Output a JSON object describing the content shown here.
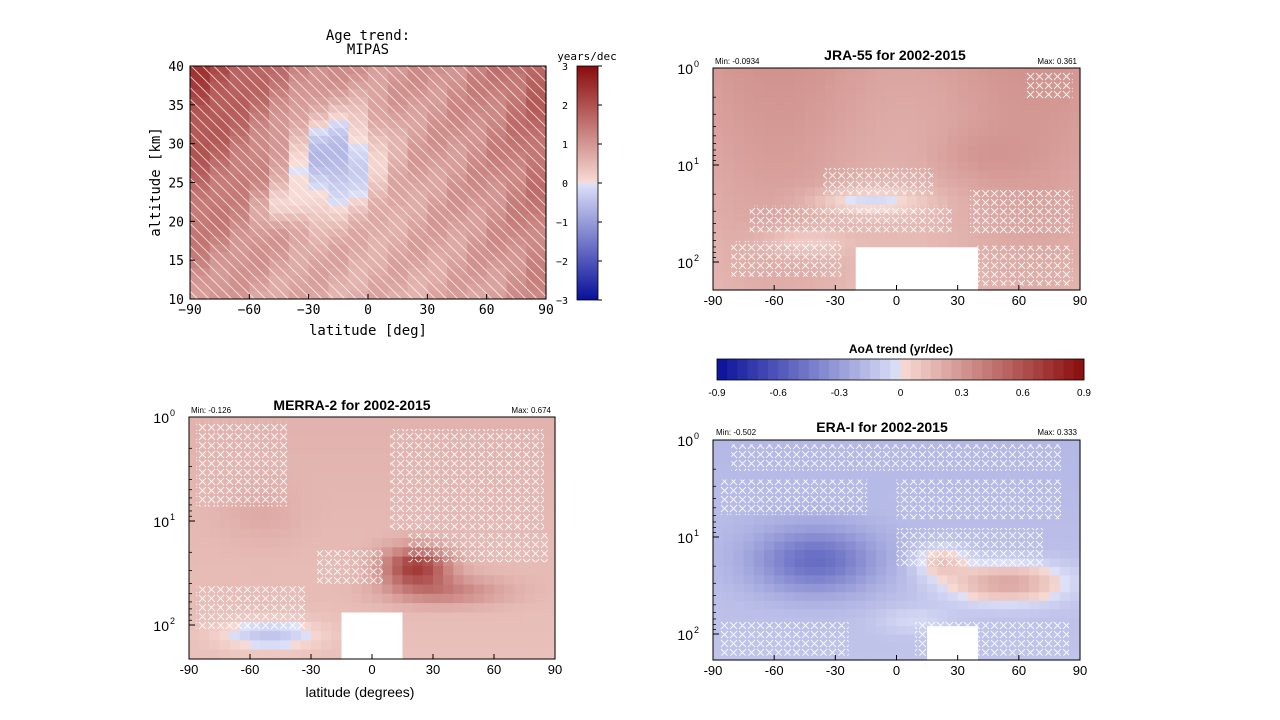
{
  "colors": {
    "neg_dark": "#08109a",
    "neg_light": "#dfe2f8",
    "pos_light": "#f8dcd6",
    "pos_dark": "#8a0c0c",
    "missing": "#ffffff",
    "hatch": "#ffffff"
  },
  "chart_data": [
    {
      "id": "mipas",
      "type": "heatmap",
      "title_line1": "Age trend:",
      "title_line2": "MIPAS",
      "xlabel": "latitude [deg]",
      "ylabel": "altitude [km]",
      "xlim": [
        -90,
        90
      ],
      "ylim": [
        10,
        40
      ],
      "y_scale": "linear",
      "x_ticks": [
        "−90",
        "−60",
        "−30",
        "0",
        "30",
        "60",
        "90"
      ],
      "y_ticks": [
        "10",
        "15",
        "20",
        "25",
        "30",
        "35",
        "40"
      ],
      "colorbar": {
        "label": "years/dec",
        "range": [
          -3,
          3
        ],
        "ticks": [
          "3",
          "2",
          "1",
          "0",
          "−1",
          "−2",
          "−3"
        ]
      },
      "cell_grid": {
        "nx": 18,
        "ny": 30
      },
      "hatching": "diagonal lines mark non-significant trends",
      "value_range": [
        -1.2,
        3.0
      ]
    },
    {
      "id": "jra55",
      "type": "heatmap",
      "title": "JRA-55 for 2002-2015",
      "min_label": "Min: -0.0934",
      "max_label": "Max: 0.361",
      "value_range": [
        -0.0934,
        0.361
      ],
      "xlim": [
        -90,
        90
      ],
      "y_scale": "log",
      "y_ticks": [
        "10",
        "10",
        "10"
      ],
      "y_tick_exponents": [
        "0",
        "1",
        "2"
      ],
      "x_ticks": [
        "-90",
        "-60",
        "-30",
        "0",
        "30",
        "60",
        "90"
      ],
      "cell_grid": {
        "nx": 36,
        "ny": 26
      },
      "hatching": "crosses mark non-significant trends"
    },
    {
      "id": "merra2",
      "type": "heatmap",
      "title": "MERRA-2 for 2002-2015",
      "min_label": "Min: -0.126",
      "max_label": "Max: 0.674",
      "value_range": [
        -0.126,
        0.674
      ],
      "xlim": [
        -90,
        90
      ],
      "y_scale": "log",
      "y_ticks": [
        "10",
        "10",
        "10"
      ],
      "y_tick_exponents": [
        "0",
        "1",
        "2"
      ],
      "x_ticks": [
        "-90",
        "-60",
        "-30",
        "0",
        "30",
        "60",
        "90"
      ],
      "xlabel": "latitude (degrees)",
      "cell_grid": {
        "nx": 36,
        "ny": 26
      },
      "hatching": "crosses mark non-significant trends"
    },
    {
      "id": "erai",
      "type": "heatmap",
      "title": "ERA-I for 2002-2015",
      "min_label": "Min: -0.502",
      "max_label": "Max: 0.333",
      "value_range": [
        -0.502,
        0.333
      ],
      "xlim": [
        -90,
        90
      ],
      "y_scale": "log",
      "y_ticks": [
        "10",
        "10",
        "10"
      ],
      "y_tick_exponents": [
        "0",
        "1",
        "2"
      ],
      "x_ticks": [
        "-90",
        "-60",
        "-30",
        "0",
        "30",
        "60",
        "90"
      ],
      "cell_grid": {
        "nx": 36,
        "ny": 26
      },
      "hatching": "crosses mark non-significant trends"
    }
  ],
  "shared_colorbar": {
    "label": "AoA trend (yr/dec)",
    "range": [
      -0.9,
      0.9
    ],
    "ticks": [
      "-0.9",
      "-0.6",
      "-0.3",
      "0",
      "0.3",
      "0.6",
      "0.9"
    ]
  }
}
